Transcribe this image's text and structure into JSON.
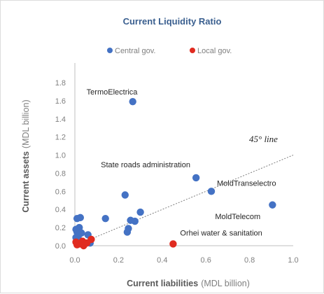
{
  "chart_data": {
    "type": "scatter",
    "title": "Current Liquidity Ratio",
    "xlabel": "Current liabilities",
    "xlabel_unit": "(MDL billion)",
    "ylabel": "Current assets",
    "ylabel_unit": "(MDL billion)",
    "xlim": [
      0,
      1.0
    ],
    "ylim": [
      0,
      1.8
    ],
    "x_ticks": [
      "0.0",
      "0.2",
      "0.4",
      "0.6",
      "0.8",
      "1.0"
    ],
    "y_ticks": [
      "0.0",
      "0.2",
      "0.4",
      "0.6",
      "0.8",
      "1.0",
      "1.2",
      "1.4",
      "1.6",
      "1.8"
    ],
    "grid": false,
    "legend_position": "top",
    "reference_line": {
      "label": "45° line",
      "from": [
        0,
        0
      ],
      "to": [
        1.0,
        1.0
      ]
    },
    "series": [
      {
        "name": "Central gov.",
        "color": "#4472c4",
        "points": [
          [
            0.265,
            1.59
          ],
          [
            0.555,
            0.75
          ],
          [
            0.625,
            0.6
          ],
          [
            0.905,
            0.45
          ],
          [
            0.23,
            0.56
          ],
          [
            0.3,
            0.37
          ],
          [
            0.14,
            0.3
          ],
          [
            0.255,
            0.28
          ],
          [
            0.275,
            0.27
          ],
          [
            0.245,
            0.19
          ],
          [
            0.24,
            0.15
          ],
          [
            0.01,
            0.3
          ],
          [
            0.025,
            0.31
          ],
          [
            0.02,
            0.2
          ],
          [
            0.005,
            0.18
          ],
          [
            0.01,
            0.15
          ],
          [
            0.03,
            0.14
          ],
          [
            0.015,
            0.1
          ],
          [
            0.005,
            0.09
          ],
          [
            0.06,
            0.12
          ],
          [
            0.07,
            0.03
          ],
          [
            0.02,
            0.04
          ]
        ]
      },
      {
        "name": "Local gov.",
        "color": "#e02b20",
        "points": [
          [
            0.45,
            0.02
          ],
          [
            0.075,
            0.07
          ],
          [
            0.035,
            0.05
          ],
          [
            0.01,
            0.01
          ],
          [
            0.02,
            0.02
          ],
          [
            0.04,
            0.0
          ],
          [
            0.055,
            0.03
          ],
          [
            0.005,
            0.04
          ]
        ]
      }
    ],
    "annotations": [
      {
        "text": "TermoElectrica",
        "x": 0.265,
        "y": 1.59
      },
      {
        "text": "State roads administration",
        "x": 0.555,
        "y": 0.75
      },
      {
        "text": "MoldTranselectro",
        "x": 0.625,
        "y": 0.6
      },
      {
        "text": "MoldTelecom",
        "x": 0.905,
        "y": 0.45
      },
      {
        "text": "Orhei water & sanitation",
        "x": 0.45,
        "y": 0.02
      }
    ]
  }
}
